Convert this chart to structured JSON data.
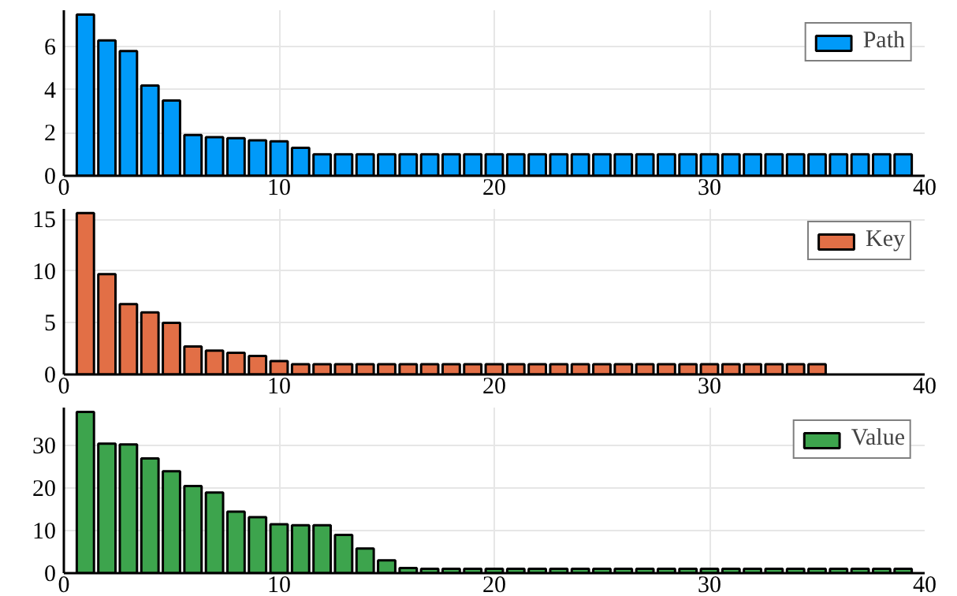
{
  "chart_data": [
    {
      "type": "bar",
      "x": [
        1,
        2,
        3,
        4,
        5,
        6,
        7,
        8,
        9,
        10,
        11,
        12,
        13,
        14,
        15,
        16,
        17,
        18,
        19,
        20,
        21,
        22,
        23,
        24,
        25,
        26,
        27,
        28,
        29,
        30,
        31,
        32,
        33,
        34,
        35,
        36,
        37,
        38,
        39
      ],
      "series": [
        {
          "name": "Path",
          "color": "#009af9",
          "values": [
            7.5,
            6.3,
            5.8,
            4.2,
            3.5,
            1.9,
            1.8,
            1.75,
            1.65,
            1.6,
            1.3,
            1,
            1,
            1,
            1,
            1,
            1,
            1,
            1,
            1,
            1,
            1,
            1,
            1,
            1,
            1,
            1,
            1,
            1,
            1,
            1,
            1,
            1,
            1,
            1,
            1,
            1,
            1,
            1
          ]
        }
      ],
      "xlim": [
        0,
        40
      ],
      "xticks": [
        0,
        10,
        20,
        30,
        40
      ],
      "ylim": [
        0,
        7.7
      ],
      "yticks": [
        0,
        2,
        4,
        6
      ],
      "grid": true,
      "legend": "top right"
    },
    {
      "type": "bar",
      "x": [
        1,
        2,
        3,
        4,
        5,
        6,
        7,
        8,
        9,
        10,
        11,
        12,
        13,
        14,
        15,
        16,
        17,
        18,
        19,
        20,
        21,
        22,
        23,
        24,
        25,
        26,
        27,
        28,
        29,
        30,
        31,
        32,
        33,
        34,
        35
      ],
      "series": [
        {
          "name": "Key",
          "color": "#e26f46",
          "values": [
            15.6,
            9.7,
            6.8,
            6,
            5,
            2.7,
            2.3,
            2.1,
            1.8,
            1.3,
            1,
            1,
            1,
            1,
            1,
            1,
            1,
            1,
            1,
            1,
            1,
            1,
            1,
            1,
            1,
            1,
            1,
            1,
            1,
            1,
            1,
            1,
            1,
            1,
            1
          ]
        }
      ],
      "xlim": [
        0,
        40
      ],
      "xticks": [
        0,
        10,
        20,
        30,
        40
      ],
      "ylim": [
        0,
        16
      ],
      "yticks": [
        0,
        5,
        10,
        15
      ],
      "grid": true,
      "legend": "top right"
    },
    {
      "type": "bar",
      "x": [
        1,
        2,
        3,
        4,
        5,
        6,
        7,
        8,
        9,
        10,
        11,
        12,
        13,
        14,
        15,
        16,
        17,
        18,
        19,
        20,
        21,
        22,
        23,
        24,
        25,
        26,
        27,
        28,
        29,
        30,
        31,
        32,
        33,
        34,
        35,
        36,
        37,
        38,
        39
      ],
      "series": [
        {
          "name": "Value",
          "color": "#3da44d",
          "values": [
            38,
            30.5,
            30.3,
            27,
            24,
            20.5,
            19,
            14.5,
            13.2,
            11.5,
            11.3,
            11.3,
            9,
            5.8,
            3,
            1.2,
            1,
            1,
            1,
            1,
            1,
            1,
            1,
            1,
            1,
            1,
            1,
            1,
            1,
            1,
            1,
            1,
            1,
            1,
            1,
            1,
            1,
            1,
            1
          ]
        }
      ],
      "xlim": [
        0,
        40
      ],
      "xticks": [
        0,
        10,
        20,
        30,
        40
      ],
      "ylim": [
        0,
        39
      ],
      "yticks": [
        0,
        10,
        20,
        30
      ],
      "grid": true,
      "legend": "top right"
    }
  ]
}
